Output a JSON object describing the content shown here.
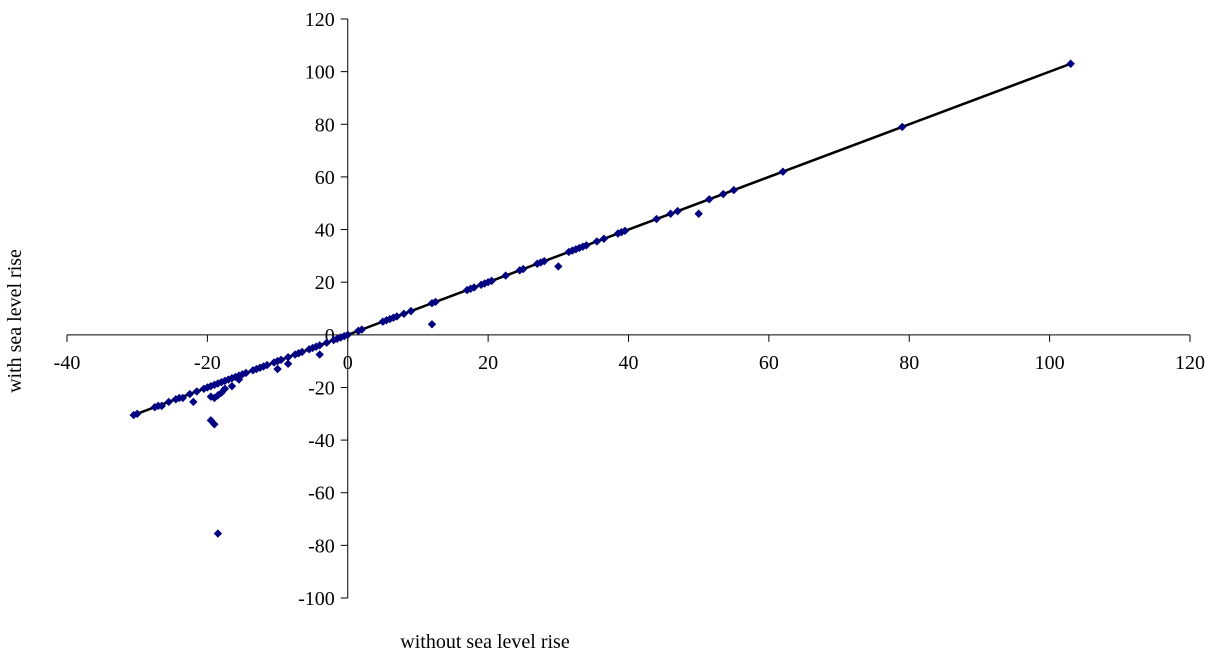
{
  "chart_data": {
    "type": "scatter",
    "title": "",
    "xlabel": "without sea level rise",
    "ylabel": "with sea level rise",
    "xlim": [
      -40,
      120
    ],
    "ylim": [
      -100,
      120
    ],
    "xticks": [
      -40,
      -20,
      0,
      20,
      40,
      60,
      80,
      100,
      120
    ],
    "yticks": [
      -100,
      -80,
      -60,
      -40,
      -20,
      0,
      20,
      40,
      60,
      80,
      100,
      120
    ],
    "xtick_labels": [
      "-40",
      "-20",
      "0",
      "20",
      "40",
      "60",
      "80",
      "100",
      "120"
    ],
    "ytick_labels": [
      "-100",
      "-80",
      "-60",
      "-40",
      "-20",
      "0",
      "20",
      "40",
      "60",
      "80",
      "100",
      "120"
    ],
    "grid": false,
    "legend": "none",
    "marker_color": "#000080",
    "line_color": "#000000",
    "trendline": {
      "x": [
        -30.5,
        103
      ],
      "y": [
        -30.5,
        103
      ]
    },
    "series": [
      {
        "marker": "diamond",
        "points": [
          [
            -30.5,
            -30.5
          ],
          [
            -30,
            -30
          ],
          [
            -27.5,
            -27.5
          ],
          [
            -27,
            -27
          ],
          [
            -26.5,
            -27
          ],
          [
            -25.5,
            -25.5
          ],
          [
            -24.5,
            -24.5
          ],
          [
            -24,
            -24
          ],
          [
            -23.5,
            -24
          ],
          [
            -22.5,
            -22.5
          ],
          [
            -22,
            -25.5
          ],
          [
            -21.5,
            -21.5
          ],
          [
            -20.5,
            -20.5
          ],
          [
            -20,
            -20
          ],
          [
            -19.5,
            -19.5
          ],
          [
            -19.5,
            -23.5
          ],
          [
            -19,
            -19
          ],
          [
            -19,
            -24
          ],
          [
            -18.5,
            -18.5
          ],
          [
            -18.5,
            -23
          ],
          [
            -18,
            -18
          ],
          [
            -18,
            -22
          ],
          [
            -17.5,
            -17.5
          ],
          [
            -17.5,
            -20.5
          ],
          [
            -17,
            -17
          ],
          [
            -16.5,
            -16.5
          ],
          [
            -16.5,
            -19.5
          ],
          [
            -16,
            -16
          ],
          [
            -15.5,
            -15.5
          ],
          [
            -15.5,
            -17
          ],
          [
            -15,
            -15
          ],
          [
            -14.5,
            -14.5
          ],
          [
            -13.5,
            -13.5
          ],
          [
            -13,
            -13
          ],
          [
            -12.5,
            -12.5
          ],
          [
            -12,
            -12
          ],
          [
            -11.5,
            -11.5
          ],
          [
            -10.5,
            -10.5
          ],
          [
            -10,
            -10
          ],
          [
            -10,
            -13
          ],
          [
            -9.5,
            -9.5
          ],
          [
            -8.5,
            -8.5
          ],
          [
            -8.5,
            -11
          ],
          [
            -7.5,
            -7.5
          ],
          [
            -7,
            -7
          ],
          [
            -6.5,
            -6.5
          ],
          [
            -5.5,
            -5.5
          ],
          [
            -5,
            -5
          ],
          [
            -4.5,
            -4.5
          ],
          [
            -4,
            -4
          ],
          [
            -4,
            -7.5
          ],
          [
            -3,
            -3
          ],
          [
            -2,
            -2
          ],
          [
            -1.5,
            -1.5
          ],
          [
            -1,
            -1
          ],
          [
            -0.5,
            -0.5
          ],
          [
            0,
            0
          ],
          [
            1.5,
            1.5
          ],
          [
            2,
            2
          ],
          [
            -19.5,
            -32.5
          ],
          [
            -19,
            -34
          ],
          [
            -18.5,
            -75.5
          ],
          [
            5,
            5
          ],
          [
            5.5,
            5.5
          ],
          [
            6,
            6
          ],
          [
            6.5,
            6.5
          ],
          [
            7,
            7
          ],
          [
            8,
            8
          ],
          [
            9,
            9
          ],
          [
            12,
            4
          ],
          [
            12,
            12
          ],
          [
            12.5,
            12.5
          ],
          [
            17,
            17
          ],
          [
            17.5,
            17.5
          ],
          [
            18,
            18
          ],
          [
            19,
            19
          ],
          [
            19.5,
            19.5
          ],
          [
            20,
            20
          ],
          [
            20.5,
            20.5
          ],
          [
            22.5,
            22.5
          ],
          [
            24.5,
            24.5
          ],
          [
            25,
            25
          ],
          [
            27,
            27
          ],
          [
            27.5,
            27.5
          ],
          [
            28,
            28
          ],
          [
            30,
            26
          ],
          [
            31.5,
            31.5
          ],
          [
            32,
            32
          ],
          [
            32.5,
            32.5
          ],
          [
            33,
            33
          ],
          [
            33.5,
            33.5
          ],
          [
            34,
            34
          ],
          [
            35.5,
            35.5
          ],
          [
            36.5,
            36.5
          ],
          [
            38.5,
            38.5
          ],
          [
            39,
            39
          ],
          [
            39.5,
            39.5
          ],
          [
            44,
            44
          ],
          [
            46,
            46
          ],
          [
            47,
            47
          ],
          [
            50,
            46
          ],
          [
            51.5,
            51.5
          ],
          [
            53.5,
            53.5
          ],
          [
            55,
            55
          ],
          [
            62,
            62
          ],
          [
            79,
            79
          ],
          [
            103,
            103
          ]
        ]
      }
    ]
  }
}
